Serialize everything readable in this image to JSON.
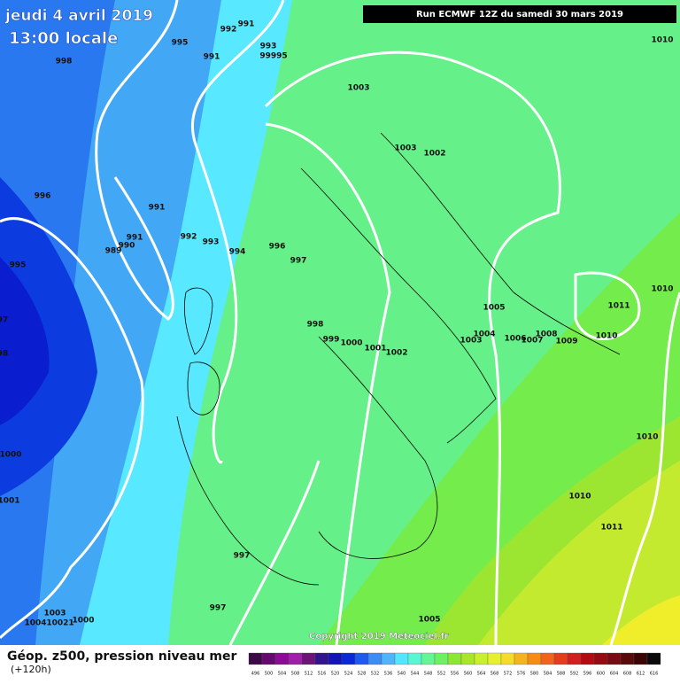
{
  "header": {
    "title": "jeudi 4 avril 2019",
    "time": "13:00 locale",
    "run": "Run ECMWF 12Z du samedi 30 mars 2019"
  },
  "isobar_labels": [
    "991",
    "992",
    "995",
    "991",
    "993",
    "99995",
    "998",
    "1003",
    "1010",
    "1003",
    "1002",
    "996",
    "991",
    "991",
    "990",
    "989",
    "992",
    "993",
    "994",
    "996",
    "997",
    "995",
    "1010",
    "1011",
    "1005",
    "97",
    "98",
    "998",
    "999",
    "1000",
    "1001",
    "1002",
    "1003",
    "1004",
    "1006",
    "1007",
    "1008",
    "1009",
    "1010",
    "1010",
    "1000",
    "1001",
    "1010",
    "1011",
    "997",
    "997",
    "1003",
    "1004",
    "10021",
    "1000",
    "1005"
  ],
  "footer": {
    "field": "Géop. z500, pression niveau mer",
    "lead": "(+120h)",
    "copyright": "Copyright 2019 Meteociel.fr"
  },
  "colorbar": {
    "labels": [
      496,
      500,
      504,
      508,
      512,
      516,
      520,
      524,
      528,
      532,
      536,
      540,
      544,
      548,
      552,
      556,
      560,
      564,
      568,
      572,
      576,
      580,
      584,
      588,
      592,
      596,
      600,
      604,
      608,
      612,
      616
    ],
    "colors": [
      "#3c0a46",
      "#640a6e",
      "#8c0a96",
      "#a01eaa",
      "#6e1478",
      "#32148c",
      "#1414b4",
      "#0a28d8",
      "#1e5af0",
      "#3c8cf5",
      "#50b4fa",
      "#55e6ff",
      "#5af5d2",
      "#64f596",
      "#6ef064",
      "#8ce632",
      "#aae628",
      "#c8f02d",
      "#e6f02d",
      "#f5dc28",
      "#f5b41e",
      "#f58c14",
      "#f0641e",
      "#e63c1e",
      "#d21e1e",
      "#b40a14",
      "#960a14",
      "#780a14",
      "#5a0a0a",
      "#3c0505",
      "#0a0a0a"
    ]
  }
}
